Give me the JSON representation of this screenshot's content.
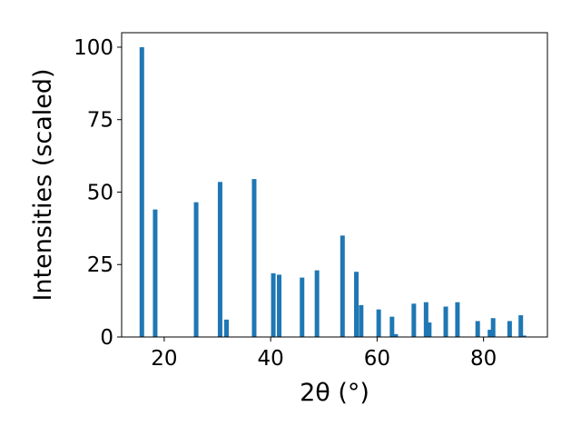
{
  "chart_data": {
    "type": "bar",
    "xlabel": "2θ (°)",
    "ylabel": "Intensities (scaled)",
    "xlim": [
      12,
      92
    ],
    "ylim": [
      0,
      105
    ],
    "xticks": [
      20,
      40,
      60,
      80
    ],
    "yticks": [
      0,
      25,
      50,
      75,
      100
    ],
    "grid": false,
    "legend": "none",
    "bar_color": "#1f77b4",
    "series": [
      {
        "x": [
          15.8,
          18.3,
          26.0,
          30.5,
          31.7,
          36.9,
          40.5,
          41.6,
          45.9,
          48.7,
          53.5,
          56.1,
          57.0,
          60.3,
          62.8,
          63.5,
          66.9,
          69.2,
          69.8,
          72.9,
          75.1,
          78.9,
          81.2,
          81.8,
          84.9,
          87.0,
          87.6
        ],
        "values": [
          100,
          44,
          46.5,
          53.5,
          6,
          54.5,
          22,
          21.5,
          20.5,
          23,
          35,
          22.5,
          11,
          9.5,
          7,
          1,
          11.5,
          12,
          5,
          10.5,
          12,
          5.5,
          2.5,
          6.5,
          5.5,
          7.5,
          0.5
        ]
      }
    ]
  }
}
